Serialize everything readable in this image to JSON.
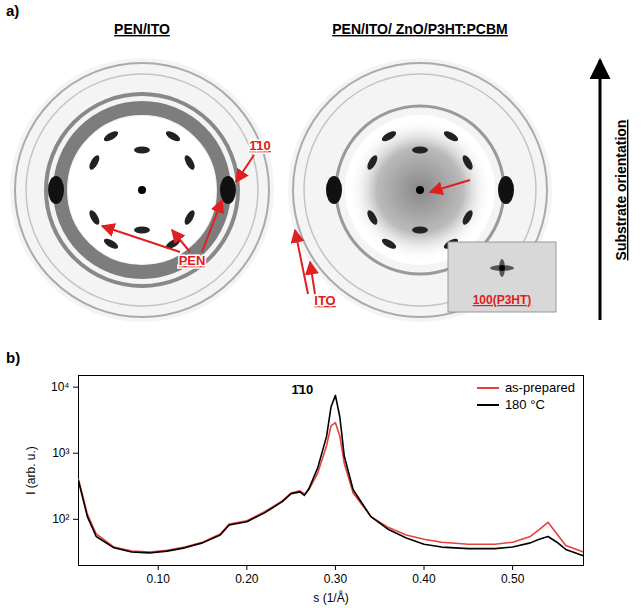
{
  "figure_a": {
    "label": "a)",
    "images": [
      {
        "title": "PEN/ITO",
        "labels": [
          "1̄10",
          "PEN"
        ]
      },
      {
        "title": "PEN/ITO/ ZnO/P3HT:PCBM",
        "labels": [
          "ITO"
        ],
        "inset": "100(P3HT)"
      }
    ],
    "side_label": "Substrate orientation"
  },
  "chart_data": {
    "type": "line",
    "panel": "b)",
    "x_label": "s (1/Å)",
    "y_label": "I (arb. u.)",
    "x": [
      0.01,
      0.02,
      0.03,
      0.05,
      0.07,
      0.09,
      0.11,
      0.13,
      0.15,
      0.17,
      0.18,
      0.2,
      0.22,
      0.24,
      0.25,
      0.26,
      0.265,
      0.27,
      0.28,
      0.29,
      0.295,
      0.3,
      0.305,
      0.31,
      0.32,
      0.34,
      0.36,
      0.38,
      0.4,
      0.42,
      0.45,
      0.48,
      0.5,
      0.52,
      0.53,
      0.54,
      0.55,
      0.56,
      0.58
    ],
    "series": [
      {
        "name": "as-prepared",
        "color": "#e8403a",
        "values": [
          400,
          120,
          60,
          38,
          33,
          32,
          34,
          38,
          45,
          60,
          85,
          95,
          130,
          190,
          250,
          270,
          240,
          280,
          500,
          1300,
          2600,
          2900,
          1800,
          700,
          250,
          110,
          75,
          58,
          50,
          45,
          42,
          42,
          45,
          55,
          70,
          90,
          60,
          40,
          32
        ]
      },
      {
        "name": "180 °C",
        "color": "#000000",
        "values": [
          380,
          110,
          55,
          37,
          32,
          31,
          33,
          37,
          44,
          58,
          82,
          92,
          125,
          185,
          245,
          260,
          230,
          290,
          600,
          1800,
          5000,
          7500,
          3500,
          900,
          280,
          110,
          70,
          52,
          42,
          38,
          36,
          36,
          38,
          44,
          50,
          55,
          45,
          35,
          28
        ]
      }
    ],
    "xlim": [
      0.01,
      0.58
    ],
    "xticks": [
      0.1,
      0.2,
      0.3,
      0.4,
      0.5
    ],
    "ylim": [
      20,
      15000
    ],
    "yticks": [
      {
        "value": 100,
        "label": "10²"
      },
      {
        "value": 1000,
        "label": "10³"
      },
      {
        "value": 10000,
        "label": "10⁴"
      }
    ],
    "log": "y",
    "legend": "upper right",
    "annotations": [
      {
        "text": "1̄10",
        "x": 0.275,
        "y": 9000
      }
    ]
  }
}
